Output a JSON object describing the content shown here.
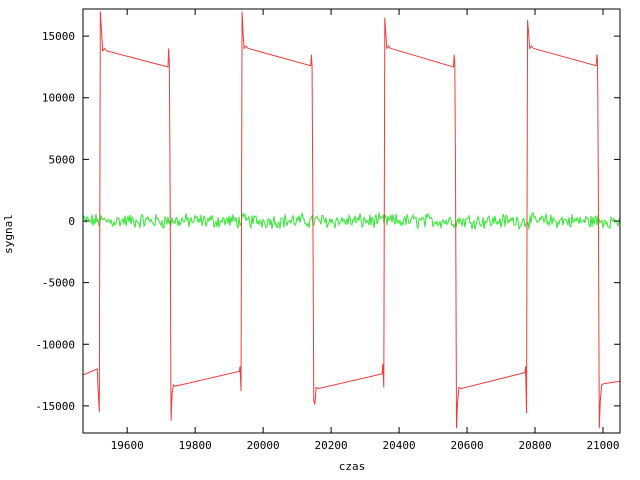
{
  "chart_data": {
    "type": "line",
    "title": "",
    "xlabel": "czas",
    "ylabel": "sygnal",
    "xlim": [
      19470,
      21050
    ],
    "ylim": [
      -17200,
      17200
    ],
    "xticks": [
      19600,
      19800,
      20000,
      20200,
      20400,
      20600,
      20800,
      21000
    ],
    "yticks": [
      15000,
      10000,
      5000,
      0,
      -5000,
      -10000,
      -15000
    ],
    "grid": false,
    "legend": "none",
    "colors": {
      "red_series": "#f03c3c",
      "green_series": "#33e833",
      "axes": "#000000"
    },
    "series": [
      {
        "key": "square",
        "x": [
          19470,
          19512,
          19514,
          19518,
          19521,
          19525,
          19528,
          19533,
          19540,
          19720,
          19722,
          19724,
          19726,
          19729,
          19732,
          19736,
          19742,
          19930,
          19932,
          19935,
          19938,
          19941,
          19944,
          19949,
          19956,
          20140,
          20142,
          20144,
          20146,
          20149,
          20152,
          20156,
          20162,
          20350,
          20352,
          20355,
          20358,
          20361,
          20364,
          20369,
          20376,
          20560,
          20562,
          20564,
          20566,
          20569,
          20572,
          20576,
          20582,
          20770,
          20772,
          20775,
          20778,
          20781,
          20784,
          20789,
          20796,
          20980,
          20982,
          20984,
          20986,
          20989,
          20992,
          20996,
          21002,
          21050
        ],
        "y": [
          -12500,
          -12000,
          -13500,
          -15500,
          17000,
          15200,
          13800,
          14000,
          13800,
          12500,
          14000,
          12800,
          4000,
          -16200,
          -14000,
          -13300,
          -13400,
          -12200,
          -11800,
          -13800,
          17000,
          15200,
          14000,
          14200,
          14000,
          12600,
          13500,
          12500,
          3000,
          -14600,
          -14900,
          -13500,
          -13600,
          -12400,
          -11600,
          -13500,
          16500,
          15200,
          14000,
          14200,
          14000,
          12500,
          13500,
          12800,
          4000,
          -16800,
          -14800,
          -13500,
          -13600,
          -12300,
          -11800,
          -15600,
          16300,
          15300,
          14000,
          14200,
          14000,
          12600,
          13500,
          13000,
          4000,
          -16800,
          -14600,
          -13300,
          -13200,
          -13000
        ]
      },
      {
        "key": "noise",
        "amplitude": 900,
        "x": [
          19470,
          21050
        ],
        "y": [
          0,
          0
        ]
      }
    ]
  }
}
